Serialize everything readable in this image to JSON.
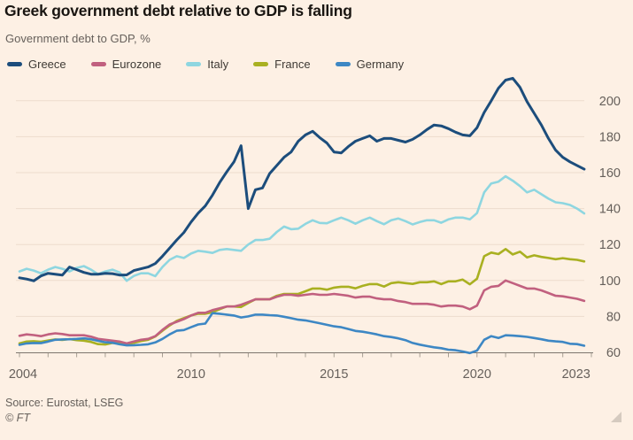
{
  "header": {
    "title": "Greek government debt relative to GDP is falling",
    "subtitle": "Government debt to GDP, %"
  },
  "colors": {
    "background": "#fdf0e4",
    "gridline": "#eddccd",
    "axis_line": "#7d776f",
    "tick": "#a89f93",
    "axis_text": "#66605b",
    "title_text": "#191511",
    "subtitle_text": "#66605b",
    "legend_text": "#3f3a35",
    "resize_handle": "#d5cabf"
  },
  "chart_data": {
    "type": "line",
    "title": "Greek government debt relative to GDP is falling",
    "ylabel": "Government debt to GDP, %",
    "grid": true,
    "legend_position": "top",
    "x_unit": "quarterly",
    "x_start": 2004,
    "x_step": 0.25,
    "x_axis_labels": [
      2004,
      2010,
      2015,
      2020,
      2023
    ],
    "x_tick_start": 2004,
    "x_tick_end": 2024,
    "y_ticks": [
      60,
      80,
      100,
      120,
      140,
      160,
      180,
      200
    ],
    "ylim": [
      55,
      215
    ],
    "series": [
      {
        "name": "Greece",
        "color": "#1c4d7c",
        "values": [
          101.5,
          100.8,
          99.8,
          102.5,
          104.0,
          103.5,
          103.0,
          107.5,
          106.0,
          104.5,
          103.5,
          103.5,
          104.0,
          103.8,
          103.0,
          103.1,
          105.5,
          106.5,
          107.5,
          109.4,
          113.5,
          118.0,
          122.5,
          126.7,
          132.5,
          137.5,
          141.5,
          147.5,
          154.5,
          160.5,
          166.0,
          175.0,
          140.0,
          150.5,
          151.5,
          159.5,
          164.0,
          168.5,
          171.5,
          177.5,
          181.0,
          183.0,
          179.5,
          176.5,
          171.5,
          171.0,
          174.5,
          177.5,
          179.0,
          180.5,
          177.5,
          179.0,
          179.0,
          178.0,
          177.0,
          178.5,
          181.0,
          184.0,
          186.5,
          186.0,
          184.5,
          182.5,
          181.0,
          180.5,
          185.0,
          193.5,
          200.0,
          207.0,
          211.5,
          212.5,
          207.5,
          199.5,
          193.0,
          186.5,
          179.0,
          172.5,
          168.5,
          166.0,
          164.0,
          161.9
        ]
      },
      {
        "name": "Eurozone",
        "color": "#c1607f",
        "values": [
          69.2,
          70.0,
          69.6,
          69.0,
          70.0,
          70.6,
          70.2,
          69.5,
          69.5,
          69.5,
          68.7,
          67.5,
          67.0,
          66.5,
          66.0,
          65.0,
          66.0,
          67.0,
          67.5,
          69.0,
          72.5,
          75.5,
          77.0,
          78.5,
          80.5,
          82.0,
          82.0,
          83.5,
          84.5,
          85.5,
          85.5,
          86.5,
          88.0,
          89.5,
          89.5,
          89.5,
          91.0,
          92.0,
          92.0,
          91.5,
          92.0,
          92.5,
          92.0,
          92.0,
          92.5,
          92.0,
          91.5,
          90.5,
          91.0,
          91.0,
          90.0,
          89.5,
          89.5,
          88.5,
          88.0,
          87.0,
          87.0,
          87.0,
          86.5,
          85.5,
          86.0,
          86.0,
          85.5,
          84.0,
          86.0,
          94.5,
          96.5,
          97.0,
          100.0,
          98.5,
          97.0,
          95.5,
          95.5,
          94.5,
          93.0,
          91.5,
          91.2,
          90.5,
          89.8,
          88.6
        ]
      },
      {
        "name": "Italy",
        "color": "#8ed6e0",
        "values": [
          105.0,
          106.5,
          105.5,
          104.0,
          106.0,
          107.5,
          106.5,
          105.0,
          107.0,
          108.0,
          106.0,
          103.5,
          105.0,
          106.0,
          104.5,
          99.8,
          102.5,
          104.0,
          104.0,
          102.4,
          107.5,
          111.5,
          113.5,
          112.5,
          115.0,
          116.5,
          116.0,
          115.3,
          117.0,
          117.5,
          117.0,
          116.5,
          120.0,
          122.5,
          122.5,
          123.2,
          127.0,
          130.0,
          128.5,
          128.8,
          131.5,
          133.5,
          132.0,
          131.8,
          133.5,
          135.0,
          133.5,
          131.6,
          133.5,
          135.0,
          133.0,
          131.3,
          133.5,
          134.5,
          133.0,
          131.2,
          132.5,
          133.5,
          133.5,
          132.1,
          134.0,
          135.0,
          135.0,
          134.0,
          137.5,
          149.0,
          154.0,
          155.0,
          158.0,
          155.5,
          152.5,
          149.0,
          150.5,
          148.0,
          145.5,
          143.5,
          143.0,
          142.0,
          140.0,
          137.3
        ]
      },
      {
        "name": "France",
        "color": "#a9b021",
        "values": [
          65.0,
          66.0,
          66.2,
          65.9,
          66.6,
          67.2,
          66.9,
          67.4,
          66.8,
          66.5,
          65.8,
          64.6,
          64.4,
          65.2,
          65.3,
          64.5,
          65.3,
          66.3,
          67.0,
          68.8,
          72.0,
          75.0,
          77.5,
          79.0,
          80.5,
          81.5,
          81.5,
          82.3,
          84.0,
          85.5,
          85.5,
          85.2,
          87.5,
          89.5,
          89.5,
          89.6,
          91.5,
          92.5,
          92.5,
          92.5,
          94.0,
          95.5,
          95.5,
          94.9,
          96.0,
          96.5,
          96.5,
          95.6,
          97.0,
          98.0,
          98.0,
          96.6,
          98.5,
          99.0,
          98.5,
          98.1,
          99.0,
          99.0,
          99.5,
          98.0,
          99.5,
          99.5,
          100.5,
          97.9,
          101.0,
          113.5,
          115.5,
          114.7,
          117.5,
          114.5,
          116.0,
          112.8,
          114.0,
          113.1,
          112.5,
          111.8,
          112.4,
          111.8,
          111.5,
          110.6
        ]
      },
      {
        "name": "Germany",
        "color": "#3d87c4",
        "values": [
          64.2,
          65.0,
          65.2,
          65.1,
          66.0,
          67.0,
          67.2,
          67.3,
          67.5,
          67.8,
          67.3,
          66.4,
          65.6,
          65.3,
          64.5,
          63.9,
          64.0,
          64.2,
          64.5,
          65.5,
          67.5,
          70.0,
          72.0,
          72.4,
          74.0,
          75.5,
          76.0,
          81.8,
          81.5,
          81.0,
          80.5,
          79.4,
          80.0,
          81.0,
          81.0,
          80.7,
          80.5,
          79.8,
          79.0,
          78.2,
          77.8,
          77.0,
          76.2,
          75.3,
          74.5,
          74.0,
          73.0,
          71.9,
          71.5,
          70.8,
          70.0,
          69.0,
          68.5,
          67.8,
          66.8,
          65.2,
          64.3,
          63.5,
          62.8,
          62.3,
          61.5,
          61.2,
          60.5,
          59.6,
          61.0,
          67.0,
          69.0,
          68.0,
          69.5,
          69.3,
          69.0,
          68.6,
          68.0,
          67.3,
          66.5,
          66.1,
          65.8,
          64.8,
          64.6,
          63.7
        ]
      }
    ]
  },
  "footer": {
    "source": "Source: Eurostat, LSEG",
    "copyright": "© FT"
  }
}
